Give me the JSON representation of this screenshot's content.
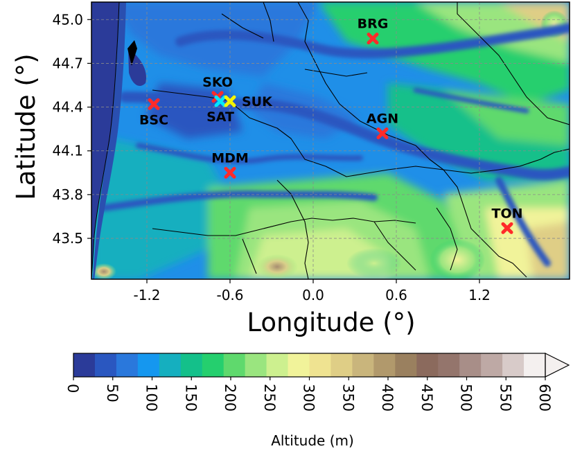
{
  "map": {
    "xlabel": "Longitude (°)",
    "ylabel": "Latitude (°)",
    "x_ticks": [
      {
        "value": -1.2,
        "label": "-1.2"
      },
      {
        "value": -0.6,
        "label": "-0.6"
      },
      {
        "value": 0.0,
        "label": "0.0"
      },
      {
        "value": 0.6,
        "label": "0.6"
      },
      {
        "value": 1.2,
        "label": "1.2"
      }
    ],
    "y_ticks": [
      {
        "value": 45.0,
        "label": "45.0"
      },
      {
        "value": 44.7,
        "label": "44.7"
      },
      {
        "value": 44.4,
        "label": "44.4"
      },
      {
        "value": 44.1,
        "label": "44.1"
      },
      {
        "value": 43.8,
        "label": "43.8"
      },
      {
        "value": 43.5,
        "label": "43.5"
      }
    ],
    "xlim": [
      -1.6,
      1.85
    ],
    "ylim": [
      43.22,
      45.12
    ],
    "grid": true,
    "sites": [
      {
        "code": "BRG",
        "lon": 0.43,
        "lat": 44.87,
        "color": "#ff2a2a",
        "label_pos": "above"
      },
      {
        "code": "SKO",
        "lon": -0.69,
        "lat": 44.47,
        "color": "#ff2a2a",
        "label_pos": "above"
      },
      {
        "code": "SAT",
        "lon": -0.67,
        "lat": 44.44,
        "color": "#00e8ff",
        "label_pos": "below"
      },
      {
        "code": "SUK",
        "lon": -0.6,
        "lat": 44.44,
        "color": "#f5f500",
        "label_pos": "right"
      },
      {
        "code": "BSC",
        "lon": -1.15,
        "lat": 44.42,
        "color": "#ff2a2a",
        "label_pos": "below"
      },
      {
        "code": "AGN",
        "lon": 0.5,
        "lat": 44.22,
        "color": "#ff2a2a",
        "label_pos": "above"
      },
      {
        "code": "MDM",
        "lon": -0.6,
        "lat": 43.95,
        "color": "#ff2a2a",
        "label_pos": "above"
      },
      {
        "code": "TON",
        "lon": 1.4,
        "lat": 43.57,
        "color": "#ff2a2a",
        "label_pos": "above"
      }
    ],
    "ocean_color": "#2b3b99",
    "border_color": "#000000"
  },
  "colorbar": {
    "title": "Altitude (m)",
    "ticks": [
      "0",
      "50",
      "100",
      "150",
      "200",
      "250",
      "300",
      "350",
      "400",
      "450",
      "500",
      "550",
      "600"
    ],
    "range": [
      0,
      600
    ],
    "extend": "max",
    "colors": [
      "#2b3b99",
      "#2a57c0",
      "#2a78dc",
      "#1597ef",
      "#15afbf",
      "#14c08a",
      "#25cf6e",
      "#5fd96d",
      "#9ae57f",
      "#cdf08f",
      "#f1f39a",
      "#efe391",
      "#dfce86",
      "#c9b57c",
      "#b1996c",
      "#9a805f",
      "#8b6a5d",
      "#94756c",
      "#a88e88",
      "#bea9a5",
      "#d8cbc9",
      "#f4f0ef"
    ]
  }
}
